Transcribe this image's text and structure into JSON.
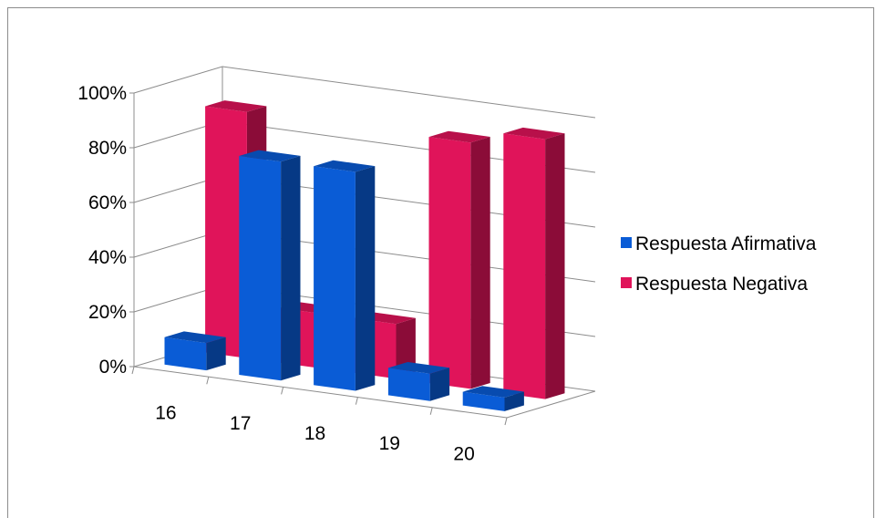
{
  "chart_data": {
    "type": "bar",
    "subtype": "3d-clustered-column",
    "categories": [
      "16",
      "17",
      "18",
      "19",
      "20"
    ],
    "series": [
      {
        "name": "Respuesta Afirmativa",
        "color": "#0a5cd6",
        "values": [
          0.1,
          0.8,
          0.8,
          0.1,
          0.05
        ]
      },
      {
        "name": "Respuesta Negativa",
        "color": "#e0145a",
        "values": [
          0.9,
          0.2,
          0.2,
          0.9,
          0.95
        ]
      }
    ],
    "ylim": [
      0,
      1
    ],
    "yticks": [
      "0%",
      "20%",
      "40%",
      "60%",
      "80%",
      "100%"
    ],
    "grid": true,
    "legend_position": "right"
  }
}
